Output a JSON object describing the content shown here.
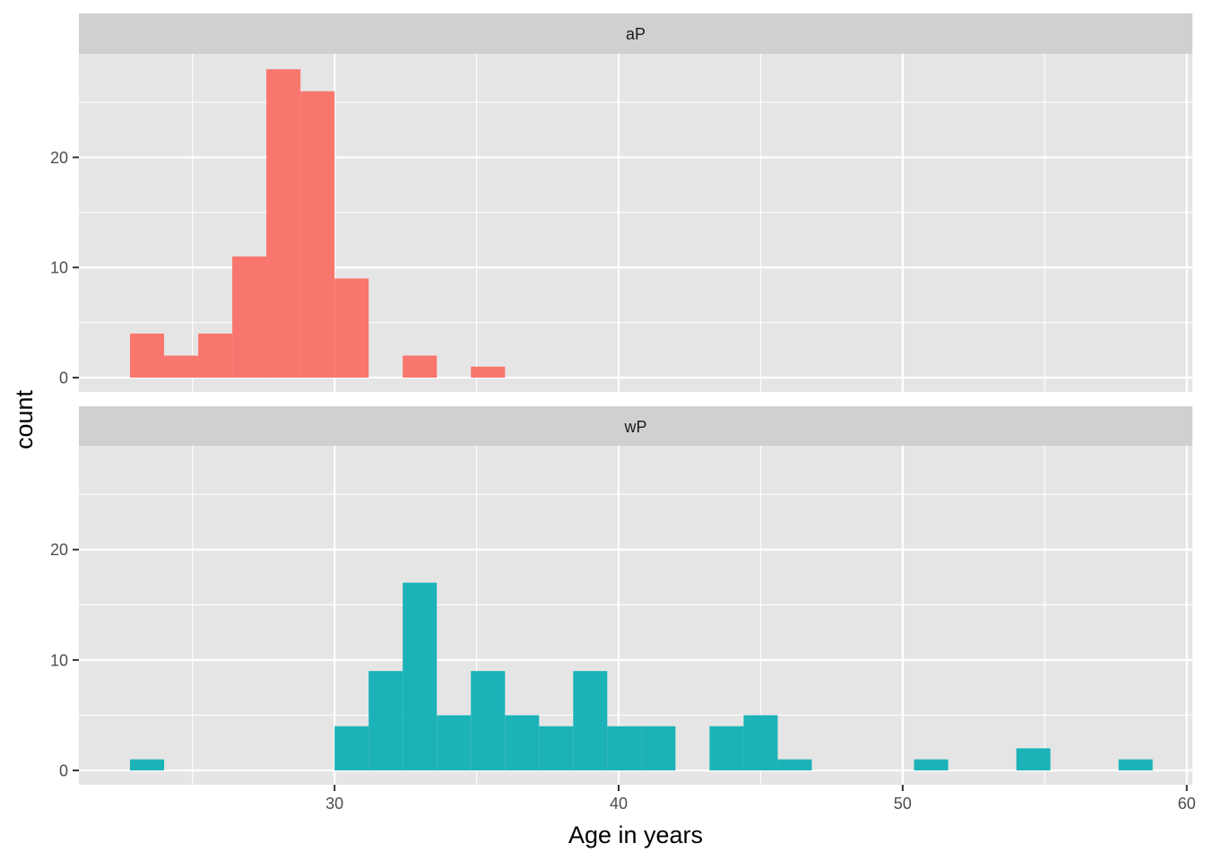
{
  "chart_data": {
    "type": "bar",
    "chart_kind": "histogram",
    "xlabel": "Age in years",
    "ylabel": "count",
    "xlim": [
      21,
      60.2
    ],
    "ylim": [
      -1.3,
      29.4
    ],
    "x_ticks": [
      30,
      40,
      50,
      60
    ],
    "y_ticks": [
      0,
      10,
      20
    ],
    "bin_width": 1.2,
    "grid": true,
    "legend": "none",
    "facets": [
      {
        "label": "aP",
        "color": "#F8766D",
        "bins": [
          {
            "x": 23.4,
            "count": 4
          },
          {
            "x": 24.6,
            "count": 2
          },
          {
            "x": 25.8,
            "count": 4
          },
          {
            "x": 27.0,
            "count": 11
          },
          {
            "x": 28.2,
            "count": 28
          },
          {
            "x": 29.4,
            "count": 26
          },
          {
            "x": 30.6,
            "count": 9
          },
          {
            "x": 33.0,
            "count": 2
          },
          {
            "x": 35.4,
            "count": 1
          }
        ]
      },
      {
        "label": "wP",
        "color": "#1BB3B8",
        "bins": [
          {
            "x": 23.4,
            "count": 1
          },
          {
            "x": 30.6,
            "count": 4
          },
          {
            "x": 31.8,
            "count": 9
          },
          {
            "x": 33.0,
            "count": 17
          },
          {
            "x": 34.2,
            "count": 5
          },
          {
            "x": 35.4,
            "count": 9
          },
          {
            "x": 36.6,
            "count": 5
          },
          {
            "x": 37.8,
            "count": 4
          },
          {
            "x": 39.0,
            "count": 9
          },
          {
            "x": 40.2,
            "count": 4
          },
          {
            "x": 41.4,
            "count": 4
          },
          {
            "x": 43.8,
            "count": 4
          },
          {
            "x": 45.0,
            "count": 5
          },
          {
            "x": 46.2,
            "count": 1
          },
          {
            "x": 51.0,
            "count": 1
          },
          {
            "x": 54.6,
            "count": 2
          },
          {
            "x": 58.2,
            "count": 1
          }
        ]
      }
    ]
  }
}
